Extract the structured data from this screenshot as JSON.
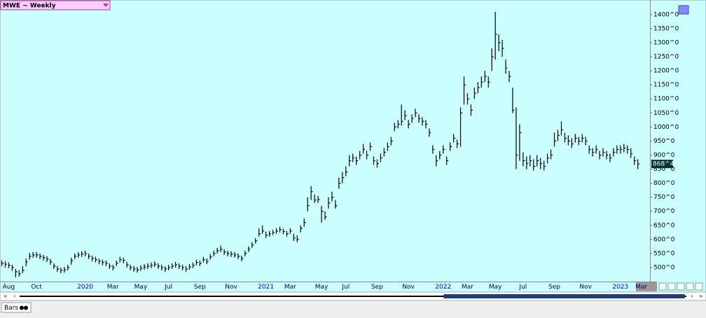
{
  "chart_data": {
    "type": "ohlc",
    "symbol_title": "MWE ~ Weekly",
    "tab_label": "Bars",
    "color": "#000000",
    "ylim": [
      450,
      1452
    ],
    "yticks": [
      {
        "value": 500,
        "label": "500^0"
      },
      {
        "value": 550,
        "label": "550^0"
      },
      {
        "value": 600,
        "label": "600^0"
      },
      {
        "value": 650,
        "label": "650^0"
      },
      {
        "value": 700,
        "label": "700^0"
      },
      {
        "value": 750,
        "label": "750^0"
      },
      {
        "value": 800,
        "label": "800^0"
      },
      {
        "value": 850,
        "label": "850^0"
      },
      {
        "value": 900,
        "label": "900^0"
      },
      {
        "value": 950,
        "label": "950^0"
      },
      {
        "value": 1000,
        "label": "1000^0"
      },
      {
        "value": 1050,
        "label": "1050^0"
      },
      {
        "value": 1100,
        "label": "1100^0"
      },
      {
        "value": 1150,
        "label": "1150^0"
      },
      {
        "value": 1200,
        "label": "1200^0"
      },
      {
        "value": 1250,
        "label": "1250^0"
      },
      {
        "value": 1300,
        "label": "1300^0"
      },
      {
        "value": 1350,
        "label": "1350^0"
      },
      {
        "value": 1400,
        "label": "1400^0"
      }
    ],
    "last_price": {
      "value": 868.5,
      "label": "868^4"
    },
    "categories": [
      null,
      null,
      "Aug",
      null,
      null,
      null,
      null,
      null,
      null,
      null,
      "Oct",
      null,
      null,
      null,
      null,
      null,
      null,
      null,
      null,
      null,
      null,
      null,
      null,
      null,
      "2020",
      null,
      null,
      null,
      null,
      null,
      null,
      null,
      "Mar",
      null,
      null,
      null,
      null,
      null,
      null,
      null,
      "May",
      null,
      null,
      null,
      null,
      null,
      null,
      null,
      "Jul",
      null,
      null,
      null,
      null,
      null,
      null,
      null,
      null,
      "Sep",
      null,
      null,
      null,
      null,
      null,
      null,
      null,
      null,
      "Nov",
      null,
      null,
      null,
      null,
      null,
      null,
      null,
      null,
      null,
      "2021",
      null,
      null,
      null,
      null,
      null,
      null,
      "Mar",
      null,
      null,
      null,
      null,
      null,
      null,
      null,
      null,
      "May",
      null,
      null,
      null,
      null,
      null,
      null,
      "Jul",
      null,
      null,
      null,
      null,
      null,
      null,
      null,
      null,
      "Sep",
      null,
      null,
      null,
      null,
      null,
      null,
      null,
      null,
      "Nov",
      null,
      null,
      null,
      null,
      null,
      null,
      null,
      null,
      null,
      "2022",
      null,
      null,
      null,
      null,
      null,
      null,
      "Mar",
      null,
      null,
      null,
      null,
      null,
      null,
      null,
      "May",
      null,
      null,
      null,
      null,
      null,
      null,
      null,
      "Jul",
      null,
      null,
      null,
      null,
      null,
      null,
      null,
      null,
      "Sep",
      null,
      null,
      null,
      null,
      null,
      null,
      null,
      null,
      "Nov",
      null,
      null,
      null,
      null,
      null,
      null,
      null,
      null,
      null,
      "2023",
      null,
      null,
      null,
      null,
      null,
      "Mar",
      null,
      null
    ],
    "bars": [
      [
        525,
        505,
        515
      ],
      [
        522,
        500,
        512
      ],
      [
        518,
        498,
        508
      ],
      [
        510,
        488,
        500
      ],
      [
        495,
        465,
        485
      ],
      [
        490,
        468,
        478
      ],
      [
        505,
        480,
        490
      ],
      [
        532,
        505,
        520
      ],
      [
        552,
        528,
        540
      ],
      [
        555,
        535,
        545
      ],
      [
        555,
        535,
        545
      ],
      [
        550,
        530,
        540
      ],
      [
        545,
        525,
        535
      ],
      [
        540,
        520,
        530
      ],
      [
        530,
        510,
        520
      ],
      [
        515,
        495,
        505
      ],
      [
        505,
        485,
        495
      ],
      [
        500,
        480,
        490
      ],
      [
        502,
        482,
        492
      ],
      [
        510,
        490,
        500
      ],
      [
        535,
        510,
        525
      ],
      [
        550,
        530,
        540
      ],
      [
        555,
        535,
        545
      ],
      [
        558,
        538,
        548
      ],
      [
        560,
        540,
        550
      ],
      [
        550,
        530,
        540
      ],
      [
        542,
        522,
        532
      ],
      [
        538,
        518,
        528
      ],
      [
        532,
        512,
        522
      ],
      [
        528,
        508,
        518
      ],
      [
        525,
        505,
        515
      ],
      [
        515,
        495,
        505
      ],
      [
        510,
        490,
        500
      ],
      [
        525,
        505,
        515
      ],
      [
        538,
        518,
        528
      ],
      [
        535,
        515,
        525
      ],
      [
        520,
        500,
        510
      ],
      [
        510,
        490,
        500
      ],
      [
        505,
        485,
        495
      ],
      [
        502,
        482,
        492
      ],
      [
        508,
        488,
        498
      ],
      [
        512,
        492,
        502
      ],
      [
        515,
        495,
        505
      ],
      [
        518,
        498,
        508
      ],
      [
        522,
        502,
        512
      ],
      [
        515,
        495,
        505
      ],
      [
        510,
        490,
        500
      ],
      [
        505,
        485,
        495
      ],
      [
        510,
        490,
        500
      ],
      [
        515,
        495,
        505
      ],
      [
        520,
        500,
        510
      ],
      [
        515,
        495,
        505
      ],
      [
        510,
        490,
        500
      ],
      [
        505,
        485,
        495
      ],
      [
        512,
        492,
        502
      ],
      [
        518,
        498,
        508
      ],
      [
        528,
        508,
        518
      ],
      [
        525,
        505,
        515
      ],
      [
        538,
        518,
        528
      ],
      [
        532,
        512,
        522
      ],
      [
        548,
        528,
        538
      ],
      [
        560,
        540,
        550
      ],
      [
        570,
        550,
        560
      ],
      [
        578,
        555,
        565
      ],
      [
        565,
        545,
        555
      ],
      [
        560,
        540,
        550
      ],
      [
        558,
        538,
        548
      ],
      [
        555,
        535,
        545
      ],
      [
        550,
        530,
        540
      ],
      [
        542,
        522,
        532
      ],
      [
        560,
        540,
        550
      ],
      [
        575,
        555,
        565
      ],
      [
        590,
        570,
        580
      ],
      [
        605,
        585,
        595
      ],
      [
        640,
        610,
        620
      ],
      [
        650,
        620,
        630
      ],
      [
        628,
        605,
        615
      ],
      [
        630,
        610,
        620
      ],
      [
        635,
        615,
        625
      ],
      [
        640,
        620,
        630
      ],
      [
        645,
        625,
        635
      ],
      [
        638,
        618,
        628
      ],
      [
        630,
        610,
        620
      ],
      [
        640,
        620,
        630
      ],
      [
        620,
        595,
        605
      ],
      [
        615,
        590,
        600
      ],
      [
        650,
        625,
        640
      ],
      [
        675,
        645,
        660
      ],
      [
        750,
        700,
        720
      ],
      [
        790,
        740,
        770
      ],
      [
        760,
        730,
        740
      ],
      [
        755,
        730,
        742
      ],
      [
        720,
        660,
        700
      ],
      [
        700,
        670,
        680
      ],
      [
        750,
        710,
        730
      ],
      [
        770,
        735,
        750
      ],
      [
        740,
        710,
        720
      ],
      [
        820,
        780,
        800
      ],
      [
        840,
        800,
        820
      ],
      [
        860,
        825,
        840
      ],
      [
        900,
        860,
        880
      ],
      [
        905,
        875,
        890
      ],
      [
        895,
        865,
        880
      ],
      [
        915,
        885,
        900
      ],
      [
        940,
        905,
        920
      ],
      [
        915,
        885,
        900
      ],
      [
        945,
        915,
        930
      ],
      [
        895,
        865,
        880
      ],
      [
        885,
        855,
        870
      ],
      [
        905,
        875,
        890
      ],
      [
        925,
        895,
        910
      ],
      [
        945,
        915,
        930
      ],
      [
        965,
        935,
        950
      ],
      [
        1015,
        985,
        1000
      ],
      [
        1025,
        995,
        1010
      ],
      [
        1080,
        1005,
        1020
      ],
      [
        1060,
        1025,
        1040
      ],
      [
        1025,
        995,
        1010
      ],
      [
        1045,
        1015,
        1030
      ],
      [
        1065,
        1035,
        1050
      ],
      [
        1045,
        1015,
        1030
      ],
      [
        1035,
        1005,
        1020
      ],
      [
        1025,
        995,
        1010
      ],
      [
        995,
        965,
        980
      ],
      [
        935,
        905,
        920
      ],
      [
        900,
        860,
        880
      ],
      [
        915,
        885,
        900
      ],
      [
        935,
        905,
        920
      ],
      [
        895,
        865,
        880
      ],
      [
        945,
        915,
        930
      ],
      [
        975,
        945,
        960
      ],
      [
        955,
        925,
        940
      ],
      [
        1070,
        930,
        1050
      ],
      [
        1180,
        1080,
        1150
      ],
      [
        1120,
        1080,
        1100
      ],
      [
        1080,
        1040,
        1060
      ],
      [
        1140,
        1100,
        1120
      ],
      [
        1160,
        1120,
        1140
      ],
      [
        1180,
        1140,
        1160
      ],
      [
        1200,
        1160,
        1180
      ],
      [
        1180,
        1140,
        1160
      ],
      [
        1280,
        1200,
        1250
      ],
      [
        1410,
        1240,
        1330
      ],
      [
        1330,
        1270,
        1300
      ],
      [
        1310,
        1250,
        1280
      ],
      [
        1240,
        1190,
        1210
      ],
      [
        1200,
        1160,
        1180
      ],
      [
        1140,
        1050,
        1060
      ],
      [
        1070,
        850,
        900
      ],
      [
        1010,
        880,
        980
      ],
      [
        910,
        860,
        880
      ],
      [
        895,
        850,
        870
      ],
      [
        900,
        860,
        880
      ],
      [
        885,
        845,
        860
      ],
      [
        900,
        860,
        880
      ],
      [
        890,
        850,
        870
      ],
      [
        880,
        845,
        860
      ],
      [
        905,
        870,
        890
      ],
      [
        920,
        885,
        900
      ],
      [
        980,
        930,
        950
      ],
      [
        990,
        950,
        970
      ],
      [
        1020,
        970,
        990
      ],
      [
        980,
        945,
        960
      ],
      [
        970,
        935,
        950
      ],
      [
        960,
        925,
        940
      ],
      [
        975,
        945,
        960
      ],
      [
        965,
        935,
        950
      ],
      [
        975,
        945,
        960
      ],
      [
        965,
        935,
        950
      ],
      [
        935,
        905,
        920
      ],
      [
        925,
        895,
        910
      ],
      [
        935,
        905,
        920
      ],
      [
        915,
        885,
        900
      ],
      [
        925,
        895,
        910
      ],
      [
        915,
        885,
        900
      ],
      [
        905,
        875,
        890
      ],
      [
        925,
        895,
        910
      ],
      [
        935,
        905,
        920
      ],
      [
        935,
        905,
        920
      ],
      [
        940,
        910,
        925
      ],
      [
        935,
        905,
        920
      ],
      [
        925,
        890,
        905
      ],
      [
        895,
        865,
        880
      ],
      [
        885,
        850,
        868.5
      ],
      null,
      null,
      null
    ]
  }
}
